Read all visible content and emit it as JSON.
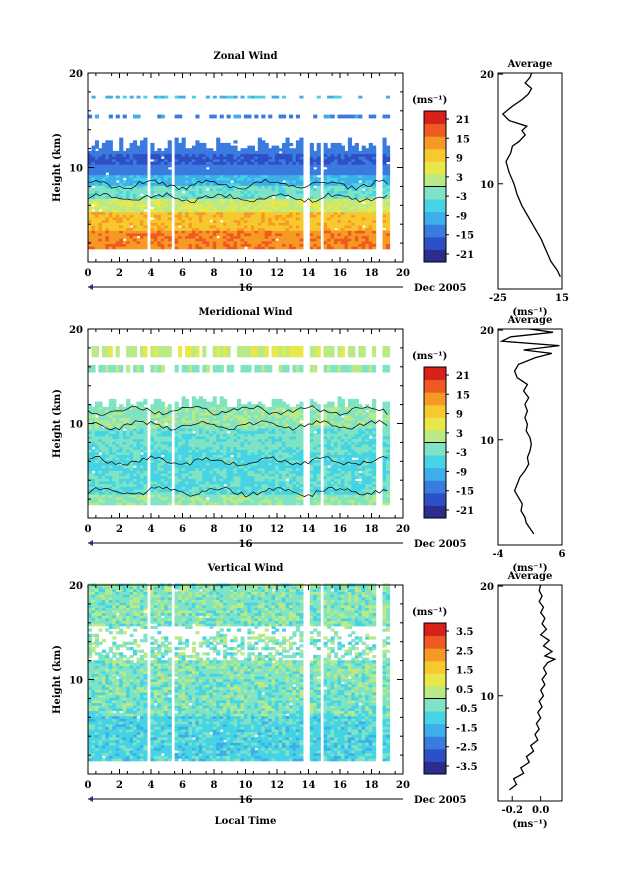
{
  "chart_data": [
    {
      "type": "heatmap",
      "title": "Zonal Wind",
      "ylabel": "Height (km)",
      "xlabel": "",
      "xlim": [
        0,
        20
      ],
      "ylim": [
        0,
        20
      ],
      "x_ticks": [
        "0",
        "2",
        "4",
        "6",
        "8",
        "10",
        "12",
        "14",
        "16",
        "18",
        "20"
      ],
      "y_ticks": [
        "10",
        "20"
      ],
      "date_label": "16",
      "month_label": "Dec 2005",
      "colorbar": {
        "unit": "(ms⁻¹)",
        "range": [
          -24,
          24
        ],
        "ticks": [
          "21",
          "15",
          "9",
          "3",
          "-3",
          "-9",
          "-15",
          "-21"
        ]
      },
      "data_gaps": [
        [
          3.7,
          4.0
        ],
        [
          5.2,
          5.6
        ],
        [
          13.6,
          14.1
        ],
        [
          14.7,
          15.0
        ],
        [
          18.3,
          18.6
        ],
        [
          19.2,
          20.0
        ]
      ],
      "profile": {
        "title": "Average",
        "xlabel": "(ms⁻¹)",
        "x_ticks": [
          "-25",
          "15"
        ],
        "xlim": [
          -25,
          15
        ],
        "y_ticks": [
          "10",
          "20"
        ],
        "points": [
          {
            "h": 1.6,
            "v": 14
          },
          {
            "h": 2.2,
            "v": 12
          },
          {
            "h": 3.0,
            "v": 8
          },
          {
            "h": 4.0,
            "v": 5
          },
          {
            "h": 5.0,
            "v": 2
          },
          {
            "h": 6.0,
            "v": -2
          },
          {
            "h": 7.0,
            "v": -6
          },
          {
            "h": 8.0,
            "v": -10
          },
          {
            "h": 9.0,
            "v": -13
          },
          {
            "h": 10.0,
            "v": -15
          },
          {
            "h": 11.0,
            "v": -18
          },
          {
            "h": 12.0,
            "v": -20
          },
          {
            "h": 12.8,
            "v": -17
          },
          {
            "h": 13.4,
            "v": -16
          },
          {
            "h": 13.8,
            "v": -12
          },
          {
            "h": 14.4,
            "v": -8
          },
          {
            "h": 14.8,
            "v": -10
          },
          {
            "h": 15.2,
            "v": -7
          },
          {
            "h": 15.7,
            "v": -18
          },
          {
            "h": 16.3,
            "v": -22
          },
          {
            "h": 17.0,
            "v": -16
          },
          {
            "h": 17.6,
            "v": -10
          },
          {
            "h": 18.1,
            "v": -6
          },
          {
            "h": 18.6,
            "v": -4
          },
          {
            "h": 19.1,
            "v": -8
          },
          {
            "h": 19.6,
            "v": -5
          },
          {
            "h": 20.0,
            "v": -4
          }
        ]
      }
    },
    {
      "type": "heatmap",
      "title": "Meridional Wind",
      "ylabel": "Height (km)",
      "xlabel": "",
      "xlim": [
        0,
        20
      ],
      "ylim": [
        0,
        20
      ],
      "x_ticks": [
        "0",
        "2",
        "4",
        "6",
        "8",
        "10",
        "12",
        "14",
        "16",
        "18",
        "20"
      ],
      "y_ticks": [
        "10",
        "20"
      ],
      "date_label": "16",
      "month_label": "Dec 2005",
      "colorbar": {
        "unit": "(ms⁻¹)",
        "range": [
          -24,
          24
        ],
        "ticks": [
          "21",
          "15",
          "9",
          "3",
          "-3",
          "-9",
          "-15",
          "-21"
        ]
      },
      "data_gaps": [
        [
          3.7,
          4.0
        ],
        [
          5.2,
          5.6
        ],
        [
          13.6,
          14.1
        ],
        [
          14.7,
          15.0
        ],
        [
          18.3,
          18.6
        ],
        [
          19.2,
          20.0
        ]
      ],
      "profile": {
        "title": "Average",
        "xlabel": "(ms⁻¹)",
        "x_ticks": [
          "-4",
          "6"
        ],
        "xlim": [
          -4,
          6
        ],
        "y_ticks": [
          "10",
          "20"
        ],
        "points": [
          {
            "h": 1.5,
            "v": 1.6
          },
          {
            "h": 2.0,
            "v": 1.0
          },
          {
            "h": 2.5,
            "v": 0.4
          },
          {
            "h": 3.0,
            "v": 0.2
          },
          {
            "h": 3.6,
            "v": -0.4
          },
          {
            "h": 4.2,
            "v": -0.2
          },
          {
            "h": 4.8,
            "v": -0.8
          },
          {
            "h": 5.4,
            "v": -1.4
          },
          {
            "h": 6.0,
            "v": -1.0
          },
          {
            "h": 6.6,
            "v": -0.6
          },
          {
            "h": 7.2,
            "v": 0.2
          },
          {
            "h": 7.8,
            "v": 0.8
          },
          {
            "h": 8.4,
            "v": 0.6
          },
          {
            "h": 9.0,
            "v": 1.0
          },
          {
            "h": 9.6,
            "v": 1.2
          },
          {
            "h": 10.2,
            "v": 1.0
          },
          {
            "h": 10.8,
            "v": 0.4
          },
          {
            "h": 11.4,
            "v": 0.6
          },
          {
            "h": 12.0,
            "v": 0.2
          },
          {
            "h": 12.6,
            "v": 0.6
          },
          {
            "h": 13.2,
            "v": 0.2
          },
          {
            "h": 13.8,
            "v": 0.8
          },
          {
            "h": 14.4,
            "v": 0.0
          },
          {
            "h": 15.0,
            "v": 0.6
          },
          {
            "h": 15.6,
            "v": -1.0
          },
          {
            "h": 16.2,
            "v": -1.4
          },
          {
            "h": 16.8,
            "v": -0.8
          },
          {
            "h": 17.4,
            "v": 1.8
          },
          {
            "h": 17.8,
            "v": 4.4
          },
          {
            "h": 18.1,
            "v": 0.0
          },
          {
            "h": 18.5,
            "v": 5.6
          },
          {
            "h": 18.9,
            "v": -3.4
          },
          {
            "h": 19.3,
            "v": -2.0
          },
          {
            "h": 19.7,
            "v": 4.6
          },
          {
            "h": 20.0,
            "v": 1.0
          }
        ]
      }
    },
    {
      "type": "heatmap",
      "title": "Vertical Wind",
      "ylabel": "Height (km)",
      "xlabel": "Local Time",
      "xlim": [
        0,
        20
      ],
      "ylim": [
        0,
        20
      ],
      "x_ticks": [
        "0",
        "2",
        "4",
        "6",
        "8",
        "10",
        "12",
        "14",
        "16",
        "18",
        "20"
      ],
      "y_ticks": [
        "10",
        "20"
      ],
      "date_label": "16",
      "month_label": "Dec 2005",
      "colorbar": {
        "unit": "(ms⁻¹)",
        "range": [
          -4,
          4
        ],
        "ticks": [
          "3.5",
          "2.5",
          "1.5",
          "0.5",
          "-0.5",
          "-1.5",
          "-2.5",
          "-3.5"
        ]
      },
      "data_gaps": [
        [
          3.7,
          4.0
        ],
        [
          5.2,
          5.6
        ],
        [
          13.6,
          14.1
        ],
        [
          14.7,
          15.0
        ],
        [
          18.3,
          18.6
        ],
        [
          19.2,
          20.0
        ]
      ],
      "profile": {
        "title": "Average",
        "xlabel": "(ms⁻¹)",
        "x_ticks": [
          "-0.2",
          "0.0"
        ],
        "xlim": [
          -0.3,
          0.15
        ],
        "y_ticks": [
          "10",
          "20"
        ],
        "points": [
          {
            "h": 1.5,
            "v": -0.22
          },
          {
            "h": 2.0,
            "v": -0.17
          },
          {
            "h": 2.5,
            "v": -0.19
          },
          {
            "h": 3.0,
            "v": -0.12
          },
          {
            "h": 3.5,
            "v": -0.14
          },
          {
            "h": 4.0,
            "v": -0.08
          },
          {
            "h": 4.5,
            "v": -0.1
          },
          {
            "h": 5.0,
            "v": -0.05
          },
          {
            "h": 5.5,
            "v": -0.07
          },
          {
            "h": 6.0,
            "v": -0.02
          },
          {
            "h": 6.5,
            "v": -0.04
          },
          {
            "h": 7.0,
            "v": -0.01
          },
          {
            "h": 7.5,
            "v": -0.03
          },
          {
            "h": 8.0,
            "v": 0.0
          },
          {
            "h": 8.5,
            "v": -0.02
          },
          {
            "h": 9.0,
            "v": 0.01
          },
          {
            "h": 9.5,
            "v": -0.01
          },
          {
            "h": 10.0,
            "v": 0.02
          },
          {
            "h": 10.5,
            "v": 0.0
          },
          {
            "h": 11.0,
            "v": 0.03
          },
          {
            "h": 11.5,
            "v": 0.01
          },
          {
            "h": 12.0,
            "v": 0.04
          },
          {
            "h": 12.5,
            "v": 0.02
          },
          {
            "h": 13.0,
            "v": 0.05
          },
          {
            "h": 13.3,
            "v": 0.1
          },
          {
            "h": 13.6,
            "v": 0.03
          },
          {
            "h": 14.0,
            "v": 0.08
          },
          {
            "h": 14.5,
            "v": 0.02
          },
          {
            "h": 15.0,
            "v": 0.06
          },
          {
            "h": 15.5,
            "v": 0.0
          },
          {
            "h": 16.0,
            "v": 0.04
          },
          {
            "h": 16.5,
            "v": 0.01
          },
          {
            "h": 17.0,
            "v": 0.03
          },
          {
            "h": 17.5,
            "v": 0.0
          },
          {
            "h": 18.0,
            "v": 0.02
          },
          {
            "h": 18.5,
            "v": -0.01
          },
          {
            "h": 19.0,
            "v": 0.01
          },
          {
            "h": 19.5,
            "v": -0.01
          },
          {
            "h": 20.0,
            "v": 0.0
          }
        ]
      }
    }
  ],
  "colors": {
    "scale": [
      "#2b2c8c",
      "#2f4fc6",
      "#3a7be0",
      "#3eaee8",
      "#45d3e6",
      "#7fe3c4",
      "#b9ea86",
      "#e8e84a",
      "#f7c92e",
      "#f79a25",
      "#ef5a22",
      "#d9211c"
    ],
    "contour": "#000000",
    "gap": "#ffffff"
  }
}
